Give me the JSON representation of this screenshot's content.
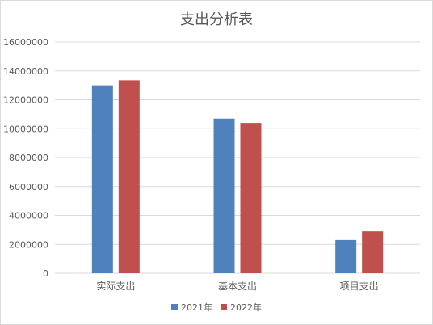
{
  "chart_data": {
    "type": "bar",
    "title": "支出分析表",
    "categories": [
      "实际支出",
      "基本支出",
      "项目支出"
    ],
    "series": [
      {
        "name": "2021年",
        "values": [
          13000000,
          10700000,
          2300000
        ],
        "color": "#4f81bd"
      },
      {
        "name": "2022年",
        "values": [
          13350000,
          10400000,
          2900000
        ],
        "color": "#c0504d"
      }
    ],
    "ylim": [
      0,
      16000000
    ],
    "yticks": [
      "0",
      "2000000",
      "4000000",
      "6000000",
      "8000000",
      "10000000",
      "12000000",
      "14000000",
      "16000000"
    ],
    "grid": true,
    "legend_position": "bottom"
  }
}
